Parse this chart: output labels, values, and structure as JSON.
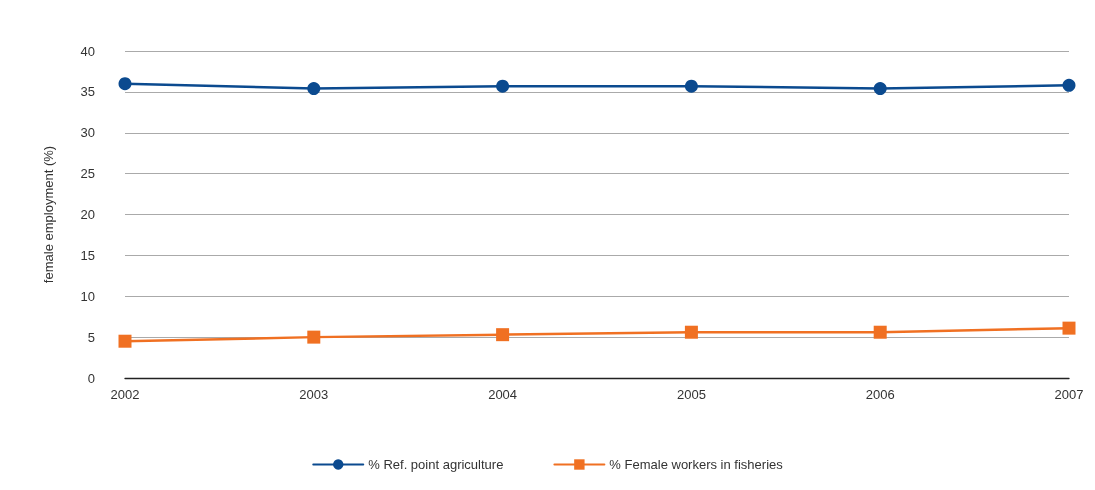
{
  "chart_data": {
    "type": "line",
    "ylabel": "female employment (%)",
    "categories": [
      "2002",
      "2003",
      "2004",
      "2005",
      "2006",
      "2007"
    ],
    "series": [
      {
        "name": "% Ref. point agriculture",
        "color": "#0b4a8f",
        "marker": "circle",
        "values": [
          36.0,
          35.4,
          35.7,
          35.7,
          35.4,
          35.8
        ]
      },
      {
        "name": "% Female workers in fisheries",
        "color": "#f07022",
        "marker": "square",
        "values": [
          4.5,
          5.0,
          5.3,
          5.6,
          5.6,
          6.1
        ]
      }
    ],
    "ylim": [
      0,
      40
    ],
    "yticks": [
      0,
      5,
      10,
      15,
      20,
      25,
      30,
      35,
      40
    ],
    "grid": "y",
    "legend": "bottom",
    "line_style": "solid"
  }
}
